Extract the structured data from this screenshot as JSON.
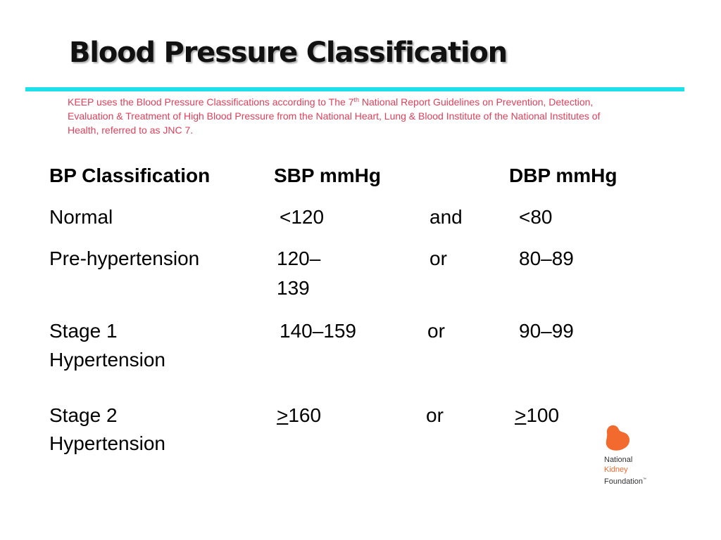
{
  "slide": {
    "title": "Blood Pressure Classification",
    "intro": {
      "part1": "KEEP uses the  Blood Pressure Classifications according to The 7",
      "sup": "th",
      "part2": " National Report Guidelines on Prevention, Detection, Evaluation & Treatment of High Blood Pressure from the National Heart, Lung & Blood Institute of the National Institutes of Health, referred to as JNC 7."
    },
    "accent_color": "#1ee0e8",
    "intro_color": "#e0405a"
  },
  "table": {
    "headers": {
      "classification": "BP Classification",
      "sbp": "SBP mmHg",
      "dbp": "DBP mmHg"
    },
    "rows": [
      {
        "class_line1": "Normal",
        "class_line2": "",
        "sbp_line1": "<120",
        "sbp_line2": "",
        "sbp_prefix": "",
        "op": "and",
        "dbp": "<80",
        "dbp_prefix": ""
      },
      {
        "class_line1": "Pre-hypertension",
        "class_line2": "",
        "sbp_line1": "120–",
        "sbp_line2": "139",
        "sbp_prefix": "",
        "op": "or",
        "dbp": "80–89",
        "dbp_prefix": ""
      },
      {
        "class_line1": "Stage 1",
        "class_line2": "Hypertension",
        "sbp_line1": "140–159",
        "sbp_line2": "",
        "sbp_prefix": "",
        "op": "or",
        "dbp": "90–99",
        "dbp_prefix": ""
      },
      {
        "class_line1": "Stage 2",
        "class_line2": "Hypertension",
        "sbp_prefix": ">",
        "sbp_line1": "160",
        "sbp_line2": "",
        "op": "or",
        "dbp_prefix": ">",
        "dbp": "100"
      }
    ]
  },
  "logo": {
    "line1": "National",
    "line2": "Kidney",
    "line3": "Foundation",
    "tm": "™",
    "color": "#f26a2e",
    "icon": "kidney-icon"
  }
}
